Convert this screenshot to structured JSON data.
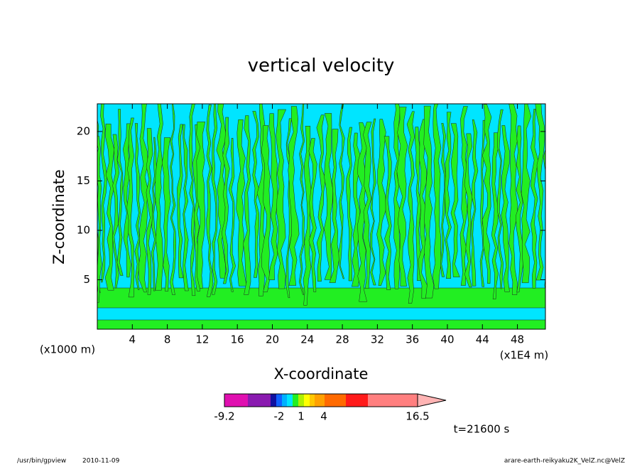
{
  "chart_data": {
    "type": "contour",
    "title": "vertical velocity",
    "xlabel": "X-coordinate",
    "ylabel": "Z-coordinate",
    "y_unit": "(x1000 m)",
    "x_unit": "(x1E4 m)",
    "xlim": [
      0,
      51.2
    ],
    "ylim": [
      0,
      22.8
    ],
    "xticks": [
      4,
      8,
      12,
      16,
      20,
      24,
      28,
      32,
      36,
      40,
      44,
      48
    ],
    "yticks": [
      5,
      10,
      15,
      20
    ],
    "colorbar": {
      "ticks": [
        -9.2,
        -2,
        1,
        4,
        16.5
      ]
    },
    "time_label": "t=21600 s",
    "footer_program": "/usr/bin/gpview",
    "footer_date": "2010-11-09",
    "footer_file": "arare-earth-reikyaku2K_VelZ.nc@VelZ"
  }
}
